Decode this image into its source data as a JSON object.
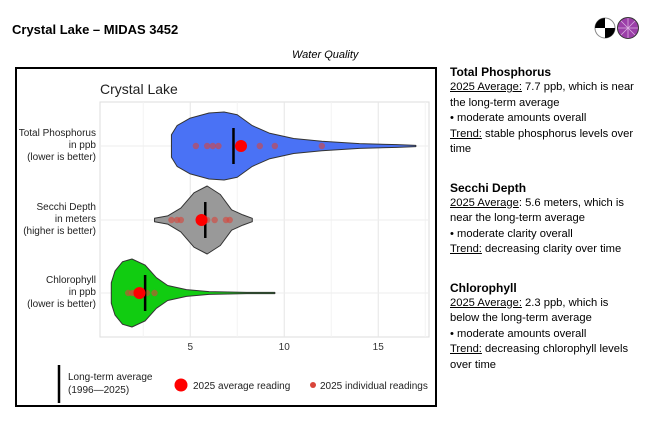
{
  "header": {
    "title": "Crystal Lake – MIDAS 3452",
    "subtitle": "Water Quality",
    "logo_icons": [
      "secchi-disk-icon",
      "purple-logo-icon"
    ]
  },
  "chart_data": {
    "type": "violin",
    "title": "Crystal Lake",
    "xlim": [
      0.2,
      17.7
    ],
    "xticks": [
      5,
      10,
      15
    ],
    "grid": true,
    "series": [
      {
        "name": "Total Phosphorus",
        "label": [
          "Total Phosphorus",
          "in ppb",
          "(lower is better)"
        ],
        "color": "#4a72f5",
        "profile": [
          [
            4,
            0.33
          ],
          [
            4.3,
            0.6
          ],
          [
            5,
            0.82
          ],
          [
            6,
            0.97
          ],
          [
            6.8,
            1
          ],
          [
            7.5,
            0.92
          ],
          [
            8.3,
            0.6
          ],
          [
            9.2,
            0.38
          ],
          [
            10.5,
            0.22
          ],
          [
            12,
            0.14
          ],
          [
            14,
            0.07
          ],
          [
            16,
            0.04
          ],
          [
            17,
            0.02
          ]
        ],
        "long_term_avg": 7.3,
        "avg_2025": 7.7,
        "readings_2025": [
          5.3,
          5.9,
          6.2,
          6.5,
          8.7,
          9.5,
          12
        ]
      },
      {
        "name": "Secchi Depth",
        "label": [
          "Secchi Depth",
          "in meters",
          "(higher is better)"
        ],
        "color": "#999999",
        "profile": [
          [
            3.1,
            0.05
          ],
          [
            3.8,
            0.12
          ],
          [
            4.5,
            0.35
          ],
          [
            5.2,
            0.8
          ],
          [
            5.9,
            1
          ],
          [
            6.6,
            0.75
          ],
          [
            7.2,
            0.3
          ],
          [
            7.8,
            0.15
          ],
          [
            8.3,
            0.05
          ]
        ],
        "long_term_avg": 5.8,
        "avg_2025": 5.6,
        "readings_2025": [
          4.0,
          4.3,
          4.5,
          5.9,
          6.3,
          6.9,
          7.1
        ]
      },
      {
        "name": "Chlorophyll",
        "label": [
          "Chlorophyll",
          "in ppb",
          "(lower is better)"
        ],
        "color": "#11cc11",
        "profile": [
          [
            0.8,
            0.3
          ],
          [
            1.0,
            0.65
          ],
          [
            1.4,
            0.92
          ],
          [
            1.9,
            1
          ],
          [
            2.6,
            0.82
          ],
          [
            3.2,
            0.45
          ],
          [
            3.8,
            0.22
          ],
          [
            4.8,
            0.1
          ],
          [
            6,
            0.04
          ],
          [
            8,
            0.02
          ],
          [
            9.5,
            0.02
          ]
        ],
        "long_term_avg": 2.6,
        "avg_2025": 2.3,
        "readings_2025": [
          1.7,
          1.9,
          2.0,
          2.7,
          3.1
        ]
      }
    ],
    "legend": {
      "long_term": [
        "Long-term average",
        "(1996—2025)"
      ],
      "avg": "2025 average reading",
      "individual": "2025 individual readings"
    }
  },
  "side": [
    {
      "title": "Total Phosphorus",
      "avg_label": "2025 Average:",
      "avg_text": " 7.7 ppb, which is near the long-term average",
      "bullet": "• moderate amounts overall",
      "trend_label": "Trend:",
      "trend_text": " stable phosphorus levels over time"
    },
    {
      "title": "Secchi Depth",
      "avg_label": "2025 Average",
      "avg_text": ": 5.6 meters, which is near the long-term average",
      "bullet": "• moderate clarity overall",
      "trend_label": "Trend:",
      "trend_text": " decreasing clarity over time"
    },
    {
      "title": "Chlorophyll",
      "avg_label": "2025 Average:",
      "avg_text": " 2.3 ppb, which is below the long-term average",
      "bullet": "• moderate amounts overall",
      "trend_label": "Trend:",
      "trend_text": " decreasing chlorophyll levels over time"
    }
  ]
}
